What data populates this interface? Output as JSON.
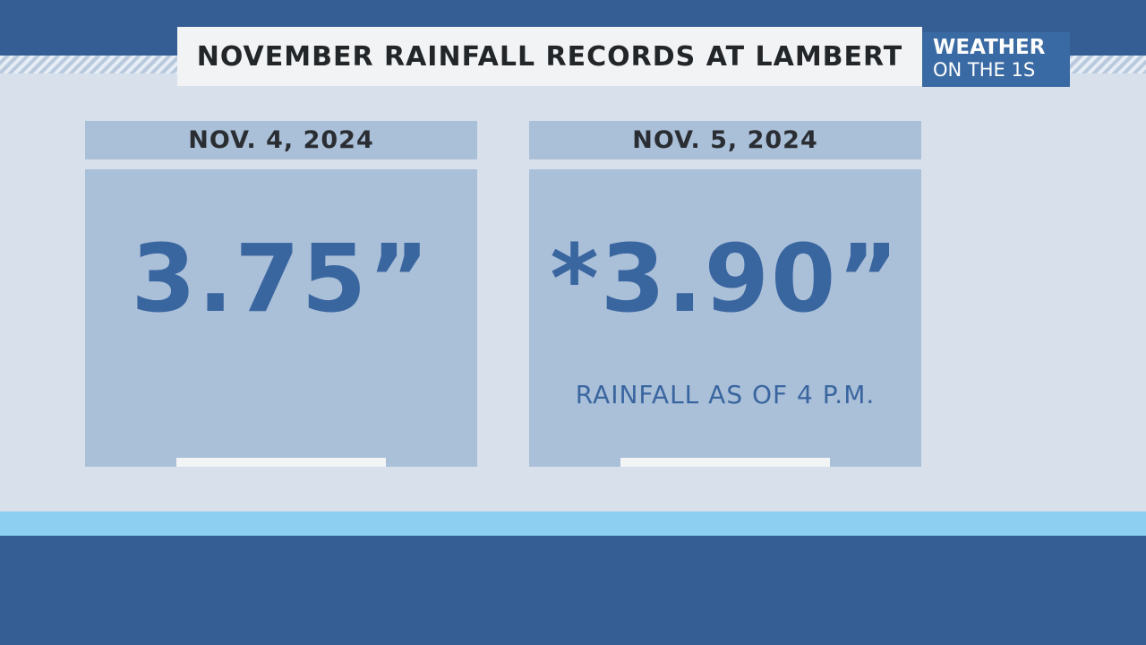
{
  "title": "NOVEMBER RAINFALL RECORDS AT LAMBERT",
  "logo": {
    "line1": "WEATHER",
    "line2": "ON THE 1S"
  },
  "cards": [
    {
      "date": "NOV. 4, 2024",
      "value": "3.75”",
      "note": ""
    },
    {
      "date": "NOV. 5, 2024",
      "value": "*3.90”",
      "note": "RAINFALL AS OF 4 P.M."
    }
  ],
  "colors": {
    "brand_blue": "#355f94",
    "card_blue": "#aabfd8",
    "value_blue": "#3a66a0",
    "accent_light_blue": "#8ccff0"
  }
}
